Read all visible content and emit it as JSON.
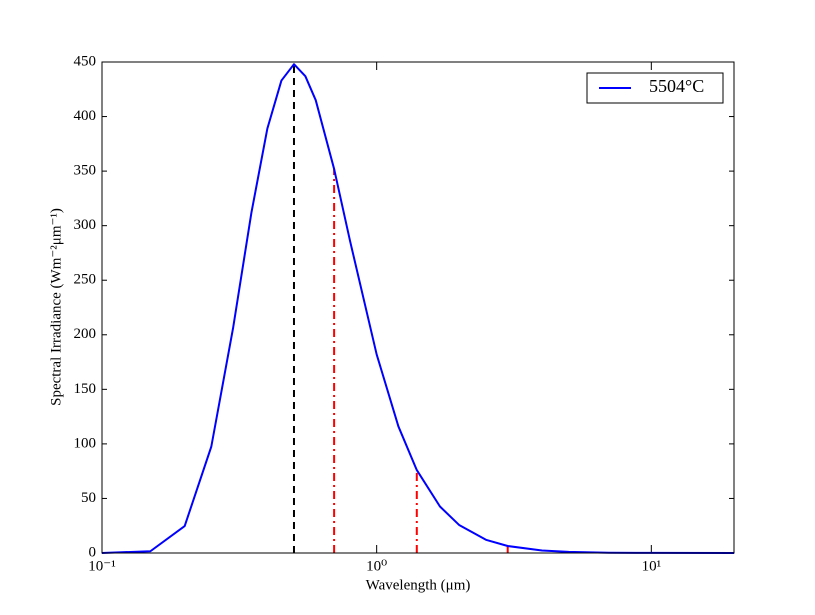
{
  "chart_data": {
    "type": "line",
    "xlabel": "Wavelength (μm)",
    "ylabel": "Spectral Irradiance (Wm⁻²μm⁻¹)",
    "xscale": "log",
    "xlim": [
      0.1,
      20
    ],
    "ylim": [
      0,
      450
    ],
    "xticks": [
      {
        "value": 0.1,
        "label": "10⁻¹"
      },
      {
        "value": 1,
        "label": "10⁰"
      },
      {
        "value": 10,
        "label": "10¹"
      }
    ],
    "yticks": [
      0,
      50,
      100,
      150,
      200,
      250,
      300,
      350,
      400,
      450
    ],
    "legend": "upper right",
    "series": [
      {
        "name": "5504°C",
        "color": "#0000ff",
        "x": [
          0.1,
          0.15,
          0.2,
          0.25,
          0.3,
          0.35,
          0.4,
          0.45,
          0.5,
          0.55,
          0.6,
          0.7,
          0.8,
          1.0,
          1.2,
          1.4,
          1.7,
          2,
          2.5,
          3,
          4,
          5,
          7,
          10,
          20
        ],
        "values": [
          0.003,
          1.6,
          24.7,
          97.5,
          206,
          312,
          389,
          433,
          448,
          437,
          415,
          352,
          286,
          182,
          116,
          76,
          42.6,
          25.5,
          12.1,
          6.4,
          2.3,
          1.0,
          0.28,
          0.07,
          0.005
        ]
      }
    ],
    "vlines": [
      {
        "x": 0.5,
        "ymax": 448,
        "color": "#000000",
        "style": "dashed"
      },
      {
        "x": 0.7,
        "ymax": 352,
        "color": "#ff0000",
        "style": "dashdot"
      },
      {
        "x": 1.4,
        "ymax": 76,
        "color": "#ff0000",
        "style": "dashdot"
      },
      {
        "x": 3,
        "ymax": 6.4,
        "color": "#ff0000",
        "style": "dashdot"
      }
    ]
  }
}
